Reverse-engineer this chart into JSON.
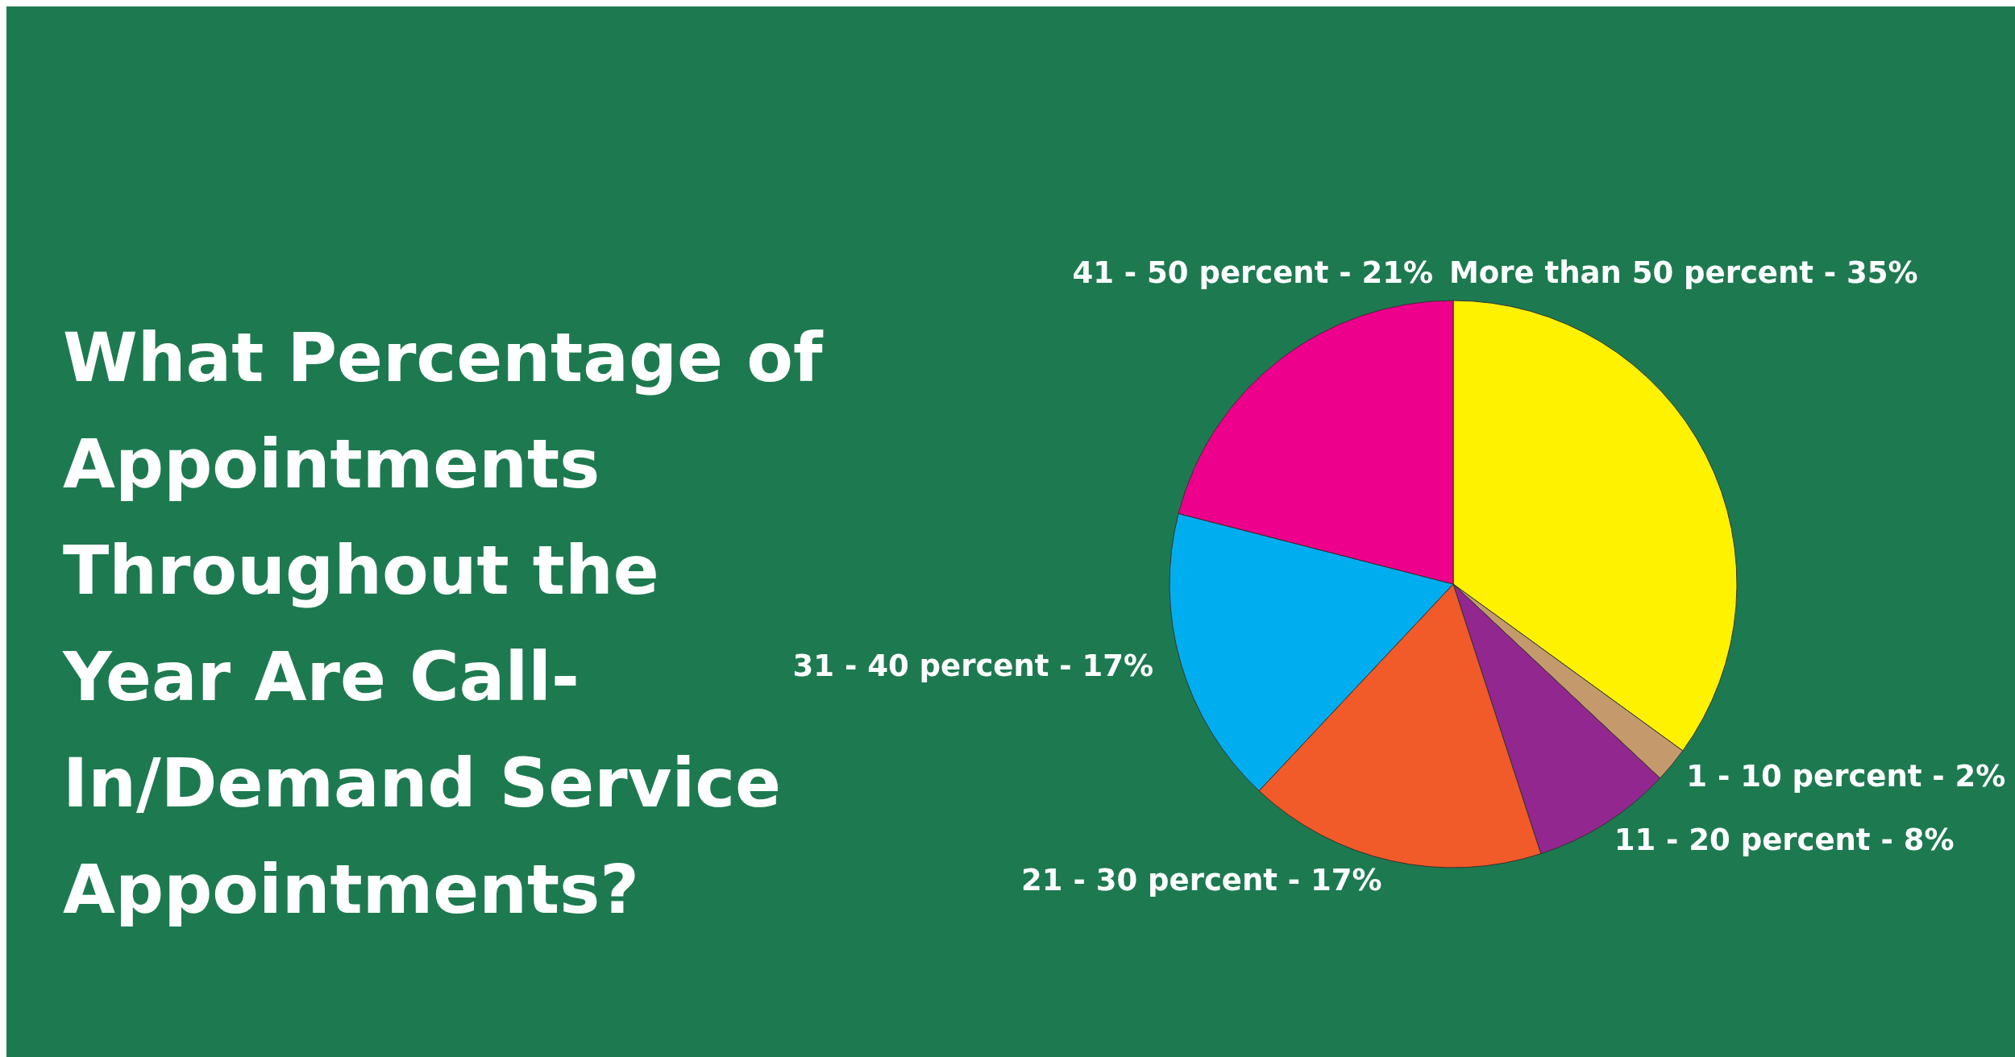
{
  "chart_data": {
    "type": "pie",
    "title": "What Percentage of Appointments Throughout the Year Are Call-In/Demand Service Appointments?",
    "categories": [
      "More than 50 percent",
      "1 - 10 percent",
      "11 - 20 percent",
      "21 - 30 percent",
      "31 - 40 percent",
      "41 - 50 percent"
    ],
    "values": [
      35,
      2,
      8,
      17,
      17,
      21
    ],
    "value_labels": [
      "35%",
      "2%",
      "8%",
      "17%",
      "17%",
      "21%"
    ],
    "colors": [
      "#fff200",
      "#c49a6c",
      "#92278f",
      "#f15a29",
      "#00aeef",
      "#ec008c"
    ]
  }
}
